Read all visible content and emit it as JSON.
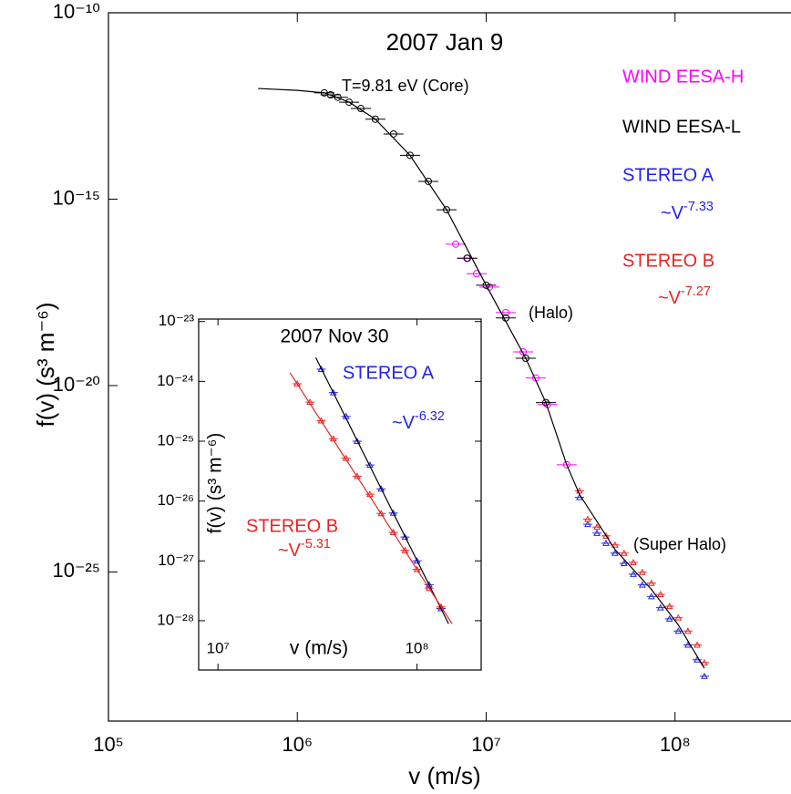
{
  "chart_data": [
    {
      "type": "scatter",
      "title": "2007 Jan 9",
      "x_label": "v (m/s)",
      "y_label": "f(v) (s³ m⁻⁶)",
      "xscale": "log",
      "yscale": "log",
      "grid": false,
      "xlim": [
        100000,
        1000000000
      ],
      "ylim": [
        1e-29,
        1e-10
      ],
      "xticks": [
        {
          "value": 100000,
          "label": "10⁵"
        },
        {
          "value": 1000000,
          "label": "10⁶"
        },
        {
          "value": 10000000,
          "label": "10⁷"
        },
        {
          "value": 100000000,
          "label": "10⁸"
        }
      ],
      "yticks": [
        {
          "value": 1e-10,
          "label": "10⁻¹⁰"
        },
        {
          "value": 1e-15,
          "label": "10⁻¹⁵"
        },
        {
          "value": 1e-20,
          "label": "10⁻²⁰"
        },
        {
          "value": 1e-25,
          "label": "10⁻²⁵"
        }
      ],
      "legend": "upper right",
      "series": [
        {
          "name": "WIND EESA-H",
          "color": "#ff00ff",
          "marker": "circle",
          "x": [
            6900000,
            7900000,
            8900000,
            10400000,
            12700000,
            15700000,
            18300000,
            21100000,
            26700000
          ],
          "values": [
            6.2e-17,
            2.6e-17,
            1e-17,
            4.4e-18,
            9.1e-19,
            8e-20,
            1.6e-20,
            3.1e-21,
            7.5e-23
          ]
        },
        {
          "name": "WIND EESA-L",
          "color": "#000000",
          "marker": "circle",
          "x": [
            1390000,
            1500000,
            1640000,
            1880000,
            2170000,
            2590000,
            3230000,
            3950000,
            4940000,
            6170000,
            7950000,
            10000000,
            12700000,
            16200000,
            20700000
          ],
          "values": [
            7.1e-13,
            6.3e-13,
            5.4e-13,
            4e-13,
            2.7e-13,
            1.4e-13,
            5.6e-14,
            1.5e-14,
            3e-15,
            5.2e-16,
            2.6e-17,
            4.9e-18,
            6.5e-19,
            5.4e-20,
            3.5e-21
          ]
        },
        {
          "name": "STEREO A",
          "color": "#2222ee",
          "marker": "triangle",
          "x": [
            31200000,
            34500000,
            38600000,
            43100000,
            48100000,
            53700000,
            60100000,
            67100000,
            75000000,
            83800000,
            93500000,
            104000000,
            117000000,
            131000000,
            143000000
          ],
          "values": [
            1e-23,
            1.9e-24,
            1.1e-24,
            5.9e-25,
            3.2e-25,
            1.7e-25,
            8.7e-26,
            4.5e-26,
            2.2e-26,
            1.1e-26,
            5.5e-27,
            2.6e-27,
            1.1e-27,
            4.4e-28,
            1.6e-28
          ]
        },
        {
          "name": "STEREO B",
          "color": "#ee2222",
          "marker": "triangle",
          "x": [
            31200000,
            34500000,
            38600000,
            43100000,
            48100000,
            53700000,
            60100000,
            67100000,
            75000000,
            83800000,
            93500000,
            104000000,
            117000000,
            131000000,
            143000000
          ],
          "values": [
            1.5e-23,
            2.6e-24,
            1.6e-24,
            9.3e-25,
            5.3e-25,
            3.2e-25,
            1.8e-25,
            9.8e-26,
            5e-26,
            2.5e-26,
            1.2e-26,
            5.9e-27,
            2.6e-27,
            1.1e-27,
            3.7e-28
          ]
        },
        {
          "color": "#000000",
          "line": true,
          "x": [
            620000,
            1000000,
            1390000,
            1880000,
            2590000,
            3950000,
            6170000,
            10000000,
            16200000,
            20700000,
            26700000,
            31200000,
            48100000,
            75000000,
            104000000,
            143000000
          ],
          "values": [
            9.3e-13,
            8.3e-13,
            7.1e-13,
            4e-13,
            1.4e-13,
            1.5e-14,
            5.2e-16,
            4.9e-18,
            5.4e-20,
            3.5e-21,
            7.5e-23,
            1.2e-23,
            4e-25,
            3.4e-26,
            3.8e-27,
            2.6e-28
          ]
        }
      ],
      "annotations": [
        {
          "text": "T=9.81 eV (Core)",
          "color": "#000000"
        },
        {
          "text": "(Halo)",
          "color": "#000000"
        },
        {
          "text": "(Super Halo)",
          "color": "#000000"
        },
        {
          "text": "~V",
          "sup": "-7.33",
          "color": "#2222ee"
        },
        {
          "text": "~V",
          "sup": "-7.27",
          "color": "#ee2222"
        }
      ]
    },
    {
      "type": "scatter",
      "title": "2007 Nov 30",
      "x_label": "v (m/s)",
      "y_label": "f(v) (s³ m⁻⁶)",
      "xscale": "log",
      "yscale": "log",
      "grid": false,
      "xlim": [
        8000000,
        210000000
      ],
      "ylim": [
        1.5e-29,
        1.1e-23
      ],
      "xticks": [
        {
          "value": 10000000,
          "label": "10⁷"
        },
        {
          "value": 100000000,
          "label": "10⁸"
        }
      ],
      "yticks": [
        {
          "value": 1e-23,
          "label": "10⁻²³"
        },
        {
          "value": 1e-24,
          "label": "10⁻²⁴"
        },
        {
          "value": 1e-25,
          "label": "10⁻²⁵"
        },
        {
          "value": 1e-26,
          "label": "10⁻²⁶"
        },
        {
          "value": 1e-27,
          "label": "10⁻²⁷"
        },
        {
          "value": 1e-28,
          "label": "10⁻²⁸"
        }
      ],
      "series": [
        {
          "name": "STEREO A",
          "color": "#2222ee",
          "marker": "triangle",
          "x": [
            33000000,
            38000000,
            44000000,
            50000000,
            58000000,
            66000000,
            76000000,
            87000000,
            100000000,
            115000000,
            132000000
          ],
          "values": [
            1.6e-24,
            6.5e-25,
            2.6e-25,
            1e-25,
            4e-26,
            1.6e-26,
            6.3e-27,
            2.5e-27,
            1e-27,
            4e-28,
            1.6e-28
          ]
        },
        {
          "name": "STEREO B",
          "color": "#ee2222",
          "marker": "triangle",
          "x": [
            25000000,
            29000000,
            33000000,
            38000000,
            44000000,
            50000000,
            58000000,
            66000000,
            76000000,
            87000000,
            100000000,
            115000000,
            132000000
          ],
          "values": [
            9.1e-25,
            4.5e-25,
            2.2e-25,
            1.1e-25,
            5.2e-26,
            2.6e-26,
            1.3e-26,
            6.2e-27,
            3e-27,
            1.5e-27,
            7.2e-28,
            3.5e-28,
            1.7e-28
          ]
        },
        {
          "color": "#000000",
          "line": true,
          "x": [
            31000000,
            144000000
          ],
          "values": [
            2.5e-24,
            8.9e-29
          ]
        },
        {
          "color": "#ee2222",
          "line": true,
          "x": [
            23000000,
            150000000
          ],
          "values": [
            1.4e-24,
            8.9e-29
          ]
        }
      ],
      "annotations": [
        {
          "text": "~V",
          "sup": "-6.32",
          "color": "#2222ee"
        },
        {
          "text": "~V",
          "sup": "-5.31",
          "color": "#ee2222"
        }
      ]
    }
  ]
}
